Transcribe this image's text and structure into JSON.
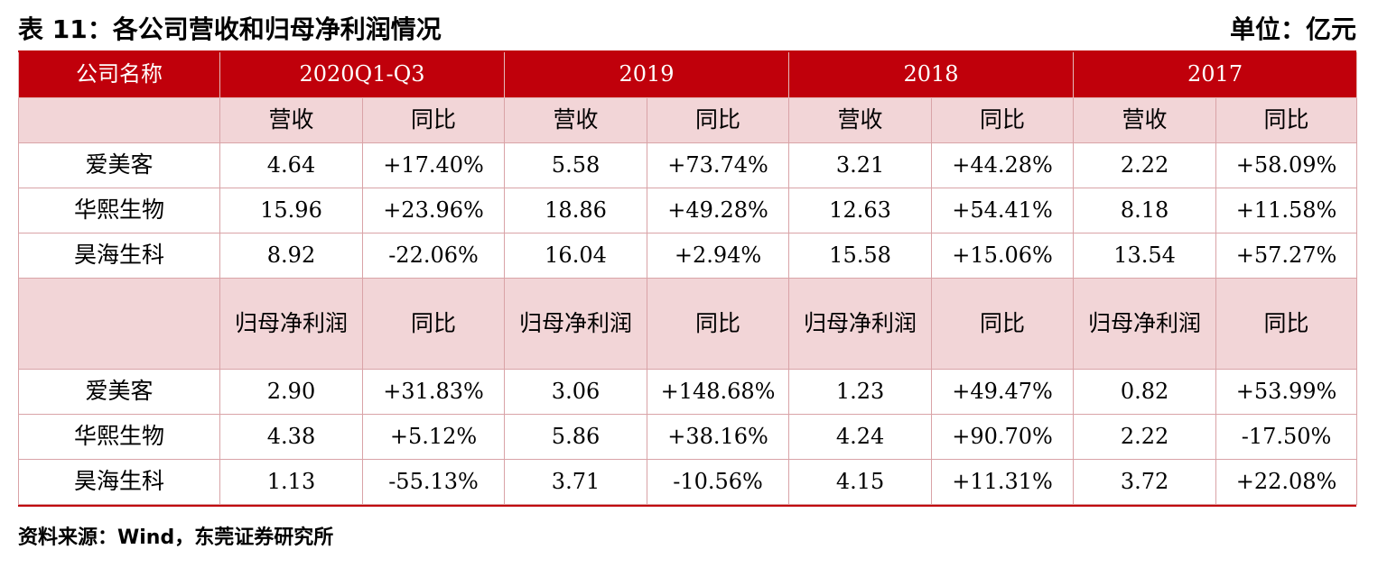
{
  "title": "表 11：各公司营收和归母净利润情况",
  "unit": "单位：亿元",
  "header": {
    "company_col": "公司名称",
    "periods": [
      "2020Q1-Q3",
      "2019",
      "2018",
      "2017"
    ]
  },
  "revenue": {
    "sub_labels": [
      "营收",
      "同比",
      "营收",
      "同比",
      "营收",
      "同比",
      "营收",
      "同比"
    ],
    "rows": [
      {
        "name": "爱美客",
        "cells": [
          "4.64",
          "+17.40%",
          "5.58",
          "+73.74%",
          "3.21",
          "+44.28%",
          "2.22",
          "+58.09%"
        ]
      },
      {
        "name": "华熙生物",
        "cells": [
          "15.96",
          "+23.96%",
          "18.86",
          "+49.28%",
          "12.63",
          "+54.41%",
          "8.18",
          "+11.58%"
        ]
      },
      {
        "name": "昊海生科",
        "cells": [
          "8.92",
          "-22.06%",
          "16.04",
          "+2.94%",
          "15.58",
          "+15.06%",
          "13.54",
          "+57.27%"
        ]
      }
    ]
  },
  "net_profit": {
    "sub_labels": [
      "归母净利润",
      "同比",
      "归母净利润",
      "同比",
      "归母净利润",
      "同比",
      "归母净利润",
      "同比"
    ],
    "rows": [
      {
        "name": "爱美客",
        "cells": [
          "2.90",
          "+31.83%",
          "3.06",
          "+148.68%",
          "1.23",
          "+49.47%",
          "0.82",
          "+53.99%"
        ]
      },
      {
        "name": "华熙生物",
        "cells": [
          "4.38",
          "+5.12%",
          "5.86",
          "+38.16%",
          "4.24",
          "+90.70%",
          "2.22",
          "-17.50%"
        ]
      },
      {
        "name": "昊海生科",
        "cells": [
          "1.13",
          "-55.13%",
          "3.71",
          "-10.56%",
          "4.15",
          "+11.31%",
          "3.72",
          "+22.08%"
        ]
      }
    ]
  },
  "source": "资料来源：Wind，东莞证券研究所"
}
